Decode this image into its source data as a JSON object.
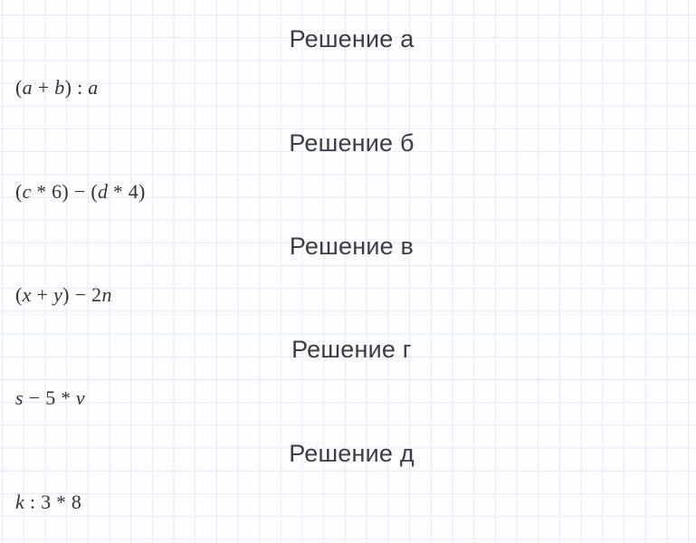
{
  "page": {
    "background_color": "#fdfdff",
    "grid_line_color": "#e3e9f6",
    "heading_text_color": "#3b3d42",
    "math_text_color": "#333333"
  },
  "sections": [
    {
      "heading": "Решение а",
      "expression": "(a + b) : a"
    },
    {
      "heading": "Решение б",
      "expression": "(c * 6) − (d * 4)"
    },
    {
      "heading": "Решение в",
      "expression": "(x + y) − 2n"
    },
    {
      "heading": "Решение г",
      "expression": "s − 5 * v"
    },
    {
      "heading": "Решение д",
      "expression": "k : 3 * 8"
    }
  ]
}
